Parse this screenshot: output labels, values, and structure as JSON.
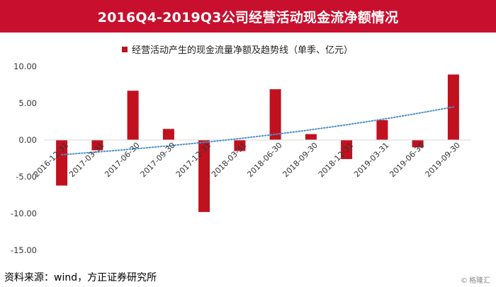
{
  "banner": {
    "title": "2016Q4-2019Q3公司经营活动现金流净额情况"
  },
  "source_text": "资料来源：wind，方正证券研究所",
  "watermark": {
    "icon": "copyright-icon",
    "text": "格隆汇"
  },
  "colors": {
    "banner": "#c8102e",
    "bar": "#c0111f",
    "trend": "#4a90c8",
    "axis": "#d9d9d9"
  },
  "chart_data": {
    "type": "bar",
    "title": "",
    "legend": {
      "label": "经营活动产生的现金流量净额及趋势线（单季、亿元）",
      "position": "top"
    },
    "categories": [
      "2016-12-31",
      "2017-03-31",
      "2017-06-30",
      "2017-09-30",
      "2017-12-31",
      "2018-03-31",
      "2018-06-30",
      "2018-09-30",
      "2018-12-31",
      "2019-03-31",
      "2019-06-30",
      "2019-09-30"
    ],
    "series": [
      {
        "name": "经营活动产生的现金流量净额及趋势线（单季、亿元）",
        "values": [
          -6.2,
          -1.4,
          6.7,
          1.5,
          -9.8,
          -1.5,
          6.9,
          0.8,
          -2.6,
          2.7,
          -1.0,
          8.9
        ]
      }
    ],
    "trendline": {
      "type": "exponential",
      "start": -2.0,
      "end": 4.5
    },
    "ylim": [
      -15,
      10
    ],
    "yticks": [
      "10.00",
      "5.00",
      "0.00",
      "-5.00",
      "-10.00",
      "-15.00"
    ],
    "ytick_values": [
      10,
      5,
      0,
      -5,
      -10,
      -15
    ],
    "grid": false
  }
}
